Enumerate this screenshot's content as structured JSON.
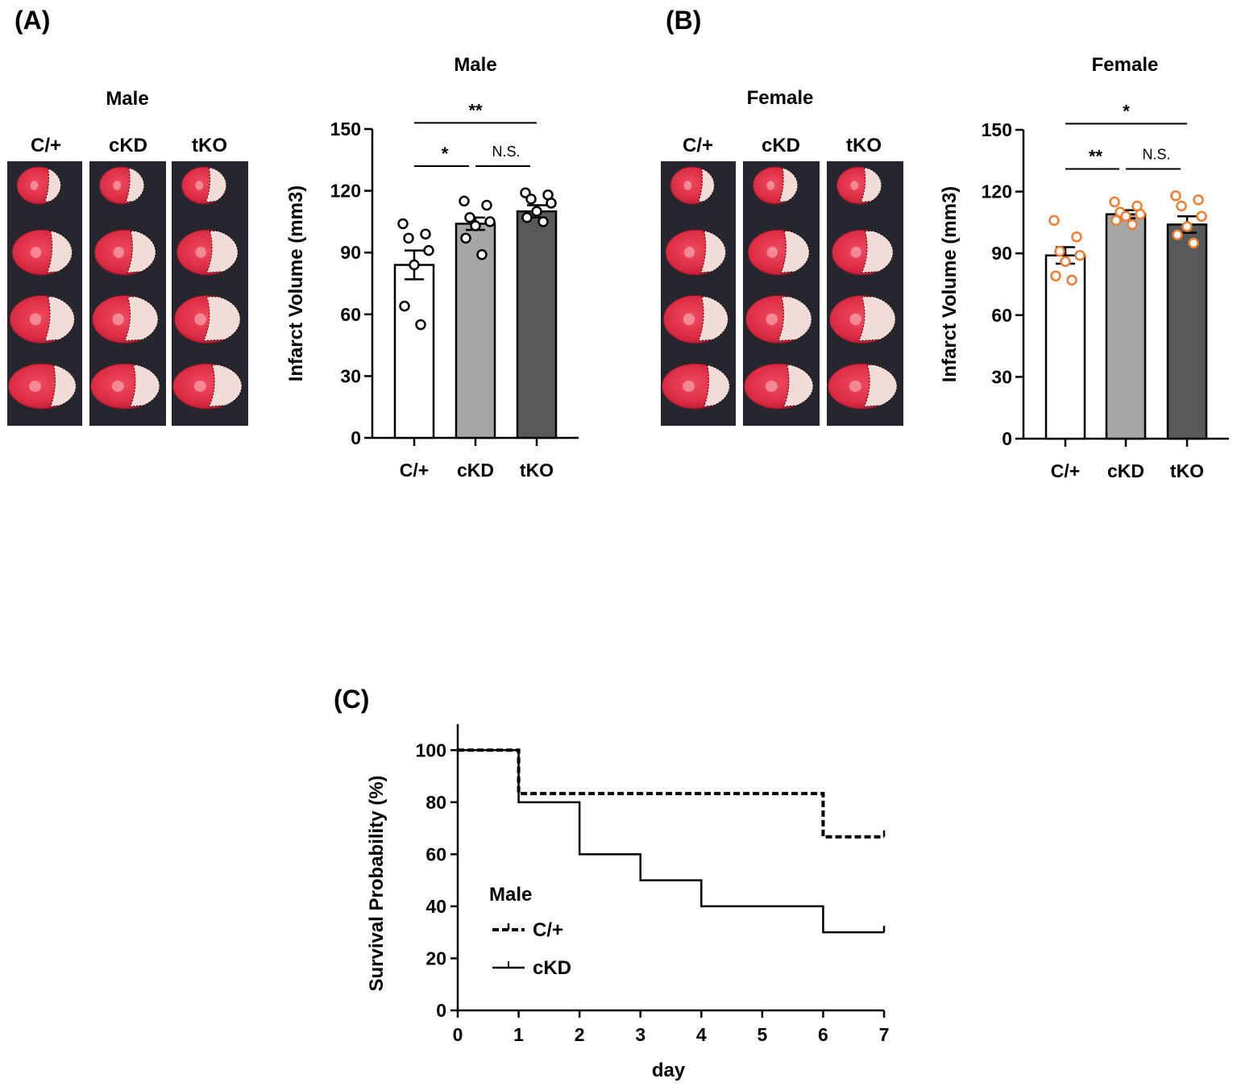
{
  "panels": {
    "A": {
      "label": "(A)",
      "image_title": "Male",
      "image_columns": [
        "C/+",
        "cKD",
        "tKO"
      ],
      "chart_title": "Male"
    },
    "B": {
      "label": "(B)",
      "image_title": "Female",
      "image_columns": [
        "C/+",
        "cKD",
        "tKO"
      ],
      "chart_title": "Female"
    },
    "C": {
      "label": "(C)"
    }
  },
  "chart_data": [
    {
      "type": "bar",
      "title": "Male",
      "ylabel": "Infarct Volume (mm3)",
      "xlabel": "",
      "categories": [
        "C/+",
        "cKD",
        "tKO"
      ],
      "values": [
        84,
        104,
        110
      ],
      "sem": [
        7,
        3,
        3
      ],
      "points": [
        [
          104,
          99,
          97,
          91,
          84,
          64,
          55
        ],
        [
          115,
          113,
          107,
          105,
          103,
          97,
          89
        ],
        [
          119,
          118,
          116,
          114,
          110,
          107,
          105
        ]
      ],
      "bar_colors": [
        "#ffffff",
        "#a6a6a6",
        "#595959"
      ],
      "point_color": "#000000",
      "ylim": [
        0,
        150
      ],
      "yticks": [
        0,
        30,
        60,
        90,
        120,
        150
      ],
      "significance": [
        {
          "groups": [
            0,
            2
          ],
          "label": "**",
          "level": 153
        },
        {
          "groups": [
            0,
            1
          ],
          "label": "*",
          "level": 132
        },
        {
          "groups": [
            1,
            2
          ],
          "label": "N.S.",
          "level": 132
        }
      ]
    },
    {
      "type": "bar",
      "title": "Female",
      "ylabel": "Infarct Volume (mm3)",
      "xlabel": "",
      "categories": [
        "C/+",
        "cKD",
        "tKO"
      ],
      "values": [
        89,
        109,
        104
      ],
      "sem": [
        4,
        2,
        4
      ],
      "points": [
        [
          106,
          98,
          91,
          89,
          86,
          79,
          77
        ],
        [
          115,
          113,
          110,
          109,
          108,
          106,
          104
        ],
        [
          118,
          116,
          113,
          108,
          103,
          99,
          95
        ]
      ],
      "bar_colors": [
        "#ffffff",
        "#a6a6a6",
        "#595959"
      ],
      "point_color": "#ed7d31",
      "ylim": [
        0,
        150
      ],
      "yticks": [
        0,
        30,
        60,
        90,
        120,
        150
      ],
      "significance": [
        {
          "groups": [
            0,
            2
          ],
          "label": "*",
          "level": 153
        },
        {
          "groups": [
            0,
            1
          ],
          "label": "**",
          "level": 131
        },
        {
          "groups": [
            1,
            2
          ],
          "label": "N.S.",
          "level": 131
        }
      ]
    },
    {
      "type": "line",
      "title": "",
      "xlabel": "day",
      "ylabel": "Survival Probability (%)",
      "xlim": [
        0,
        7
      ],
      "ylim": [
        0,
        110
      ],
      "xticks": [
        0,
        1,
        2,
        3,
        4,
        5,
        6,
        7
      ],
      "yticks": [
        0,
        20,
        40,
        60,
        80,
        100
      ],
      "legend_title": "Male",
      "legend_position": "bottom-left",
      "series": [
        {
          "name": "C/+",
          "style": "dashed",
          "steps": [
            [
              0,
              100
            ],
            [
              1,
              83.3
            ],
            [
              6,
              66.7
            ],
            [
              7,
              66.7
            ]
          ]
        },
        {
          "name": "cKD",
          "style": "solid",
          "steps": [
            [
              0,
              100
            ],
            [
              1,
              80
            ],
            [
              2,
              60
            ],
            [
              3,
              50
            ],
            [
              4,
              40
            ],
            [
              6,
              30
            ],
            [
              7,
              30
            ]
          ]
        }
      ]
    }
  ],
  "brain_tissue": {
    "colors": {
      "background": "#26262e",
      "tissue_red": "#dc2c44",
      "tissue_dark": "#b81833",
      "infarct": "#f2dcd8",
      "border_dark": "#111111"
    },
    "panels": [
      {
        "panel": "A",
        "columns": [
          "C/+",
          "cKD",
          "tKO"
        ],
        "slices_per_column": 4
      },
      {
        "panel": "B",
        "columns": [
          "C/+",
          "cKD",
          "tKO"
        ],
        "slices_per_column": 4
      }
    ]
  }
}
